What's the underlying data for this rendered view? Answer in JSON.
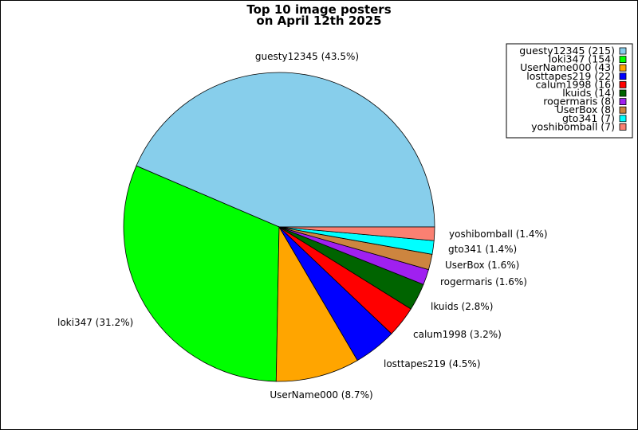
{
  "chart_data": {
    "type": "pie",
    "title": "Top 10 image posters",
    "subtitle": "on April 12th 2025",
    "legend_position": "top-right",
    "slices": [
      {
        "label": "guesty12345",
        "value": 215,
        "percent_label": "guesty12345 (43.5%)",
        "legend_label": "guesty12345 (215)",
        "color": "#87ceeb"
      },
      {
        "label": "loki347",
        "value": 154,
        "percent_label": "loki347 (31.2%)",
        "legend_label": "loki347 (154)",
        "color": "#00ff00"
      },
      {
        "label": "UserName000",
        "value": 43,
        "percent_label": "UserName000 (8.7%)",
        "legend_label": "UserName000 (43)",
        "color": "#ffa500"
      },
      {
        "label": "losttapes219",
        "value": 22,
        "percent_label": "losttapes219 (4.5%)",
        "legend_label": "losttapes219 (22)",
        "color": "#0000ff"
      },
      {
        "label": "calum1998",
        "value": 16,
        "percent_label": "calum1998 (3.2%)",
        "legend_label": "calum1998 (16)",
        "color": "#ff0000"
      },
      {
        "label": "lkuids",
        "value": 14,
        "percent_label": "lkuids (2.8%)",
        "legend_label": "lkuids (14)",
        "color": "#006400"
      },
      {
        "label": "rogermaris",
        "value": 8,
        "percent_label": "rogermaris (1.6%)",
        "legend_label": "rogermaris (8)",
        "color": "#a020f0"
      },
      {
        "label": "UserBox",
        "value": 8,
        "percent_label": "UserBox (1.6%)",
        "legend_label": "UserBox (8)",
        "color": "#cd853f"
      },
      {
        "label": "gto341",
        "value": 7,
        "percent_label": "gto341 (1.4%)",
        "legend_label": "gto341 (7)",
        "color": "#00ffff"
      },
      {
        "label": "yoshibomball",
        "value": 7,
        "percent_label": "yoshibomball (1.4%)",
        "legend_label": "yoshibomball (7)",
        "color": "#fa8072"
      }
    ]
  }
}
